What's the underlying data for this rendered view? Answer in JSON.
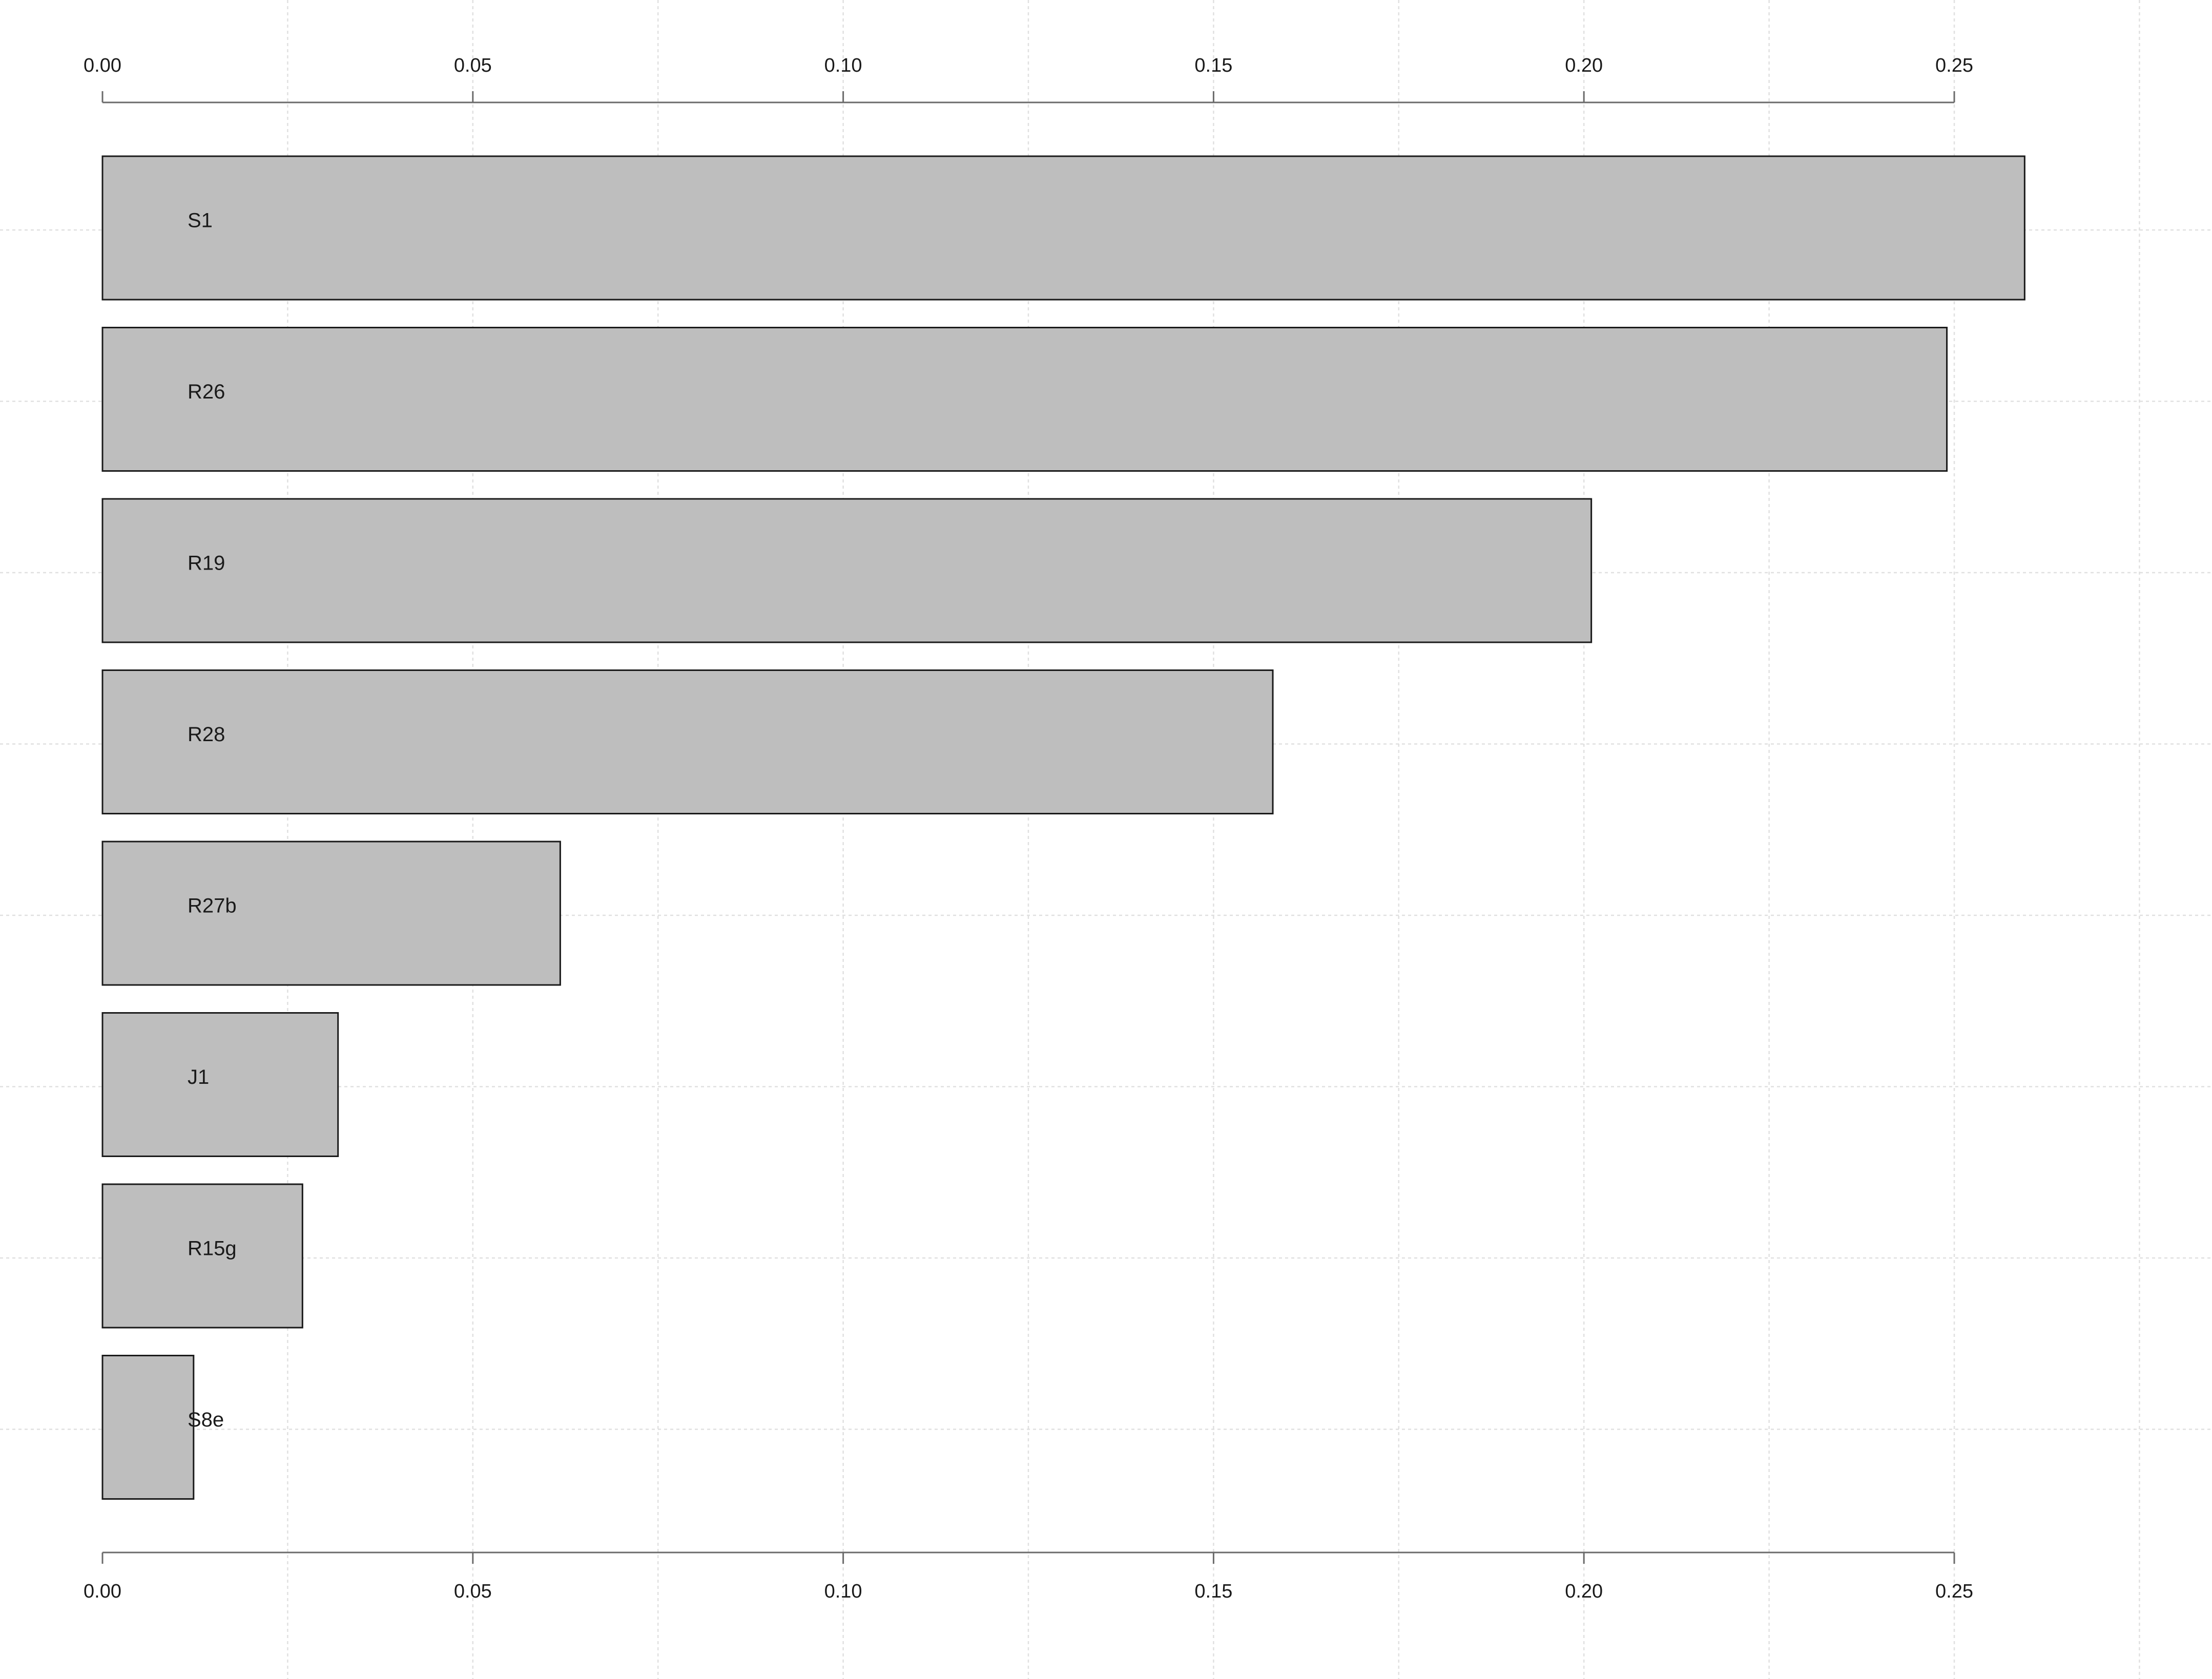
{
  "chart_data": {
    "type": "bar",
    "orientation": "horizontal",
    "title": "",
    "xlabel": "",
    "ylabel": "",
    "categories": [
      "S1",
      "R26",
      "R19",
      "R28",
      "R27b",
      "J1",
      "R15g",
      "S8e"
    ],
    "values": [
      0.2595,
      0.249,
      0.201,
      0.158,
      0.0618,
      0.0318,
      0.027,
      0.0123
    ],
    "xlim": [
      0,
      0.25
    ],
    "xticks": [
      0.0,
      0.05,
      0.1,
      0.15,
      0.2,
      0.25
    ],
    "xtick_labels": [
      "0.00",
      "0.05",
      "0.10",
      "0.15",
      "0.20",
      "0.25"
    ],
    "axis_positions": [
      "top",
      "bottom"
    ],
    "grid": true,
    "legend": false,
    "bar_color": "#bebebe",
    "bar_edge_color": "#1a1a1a",
    "grid_color": "#e0e0e0",
    "axis_color": "#6b6b6b"
  }
}
